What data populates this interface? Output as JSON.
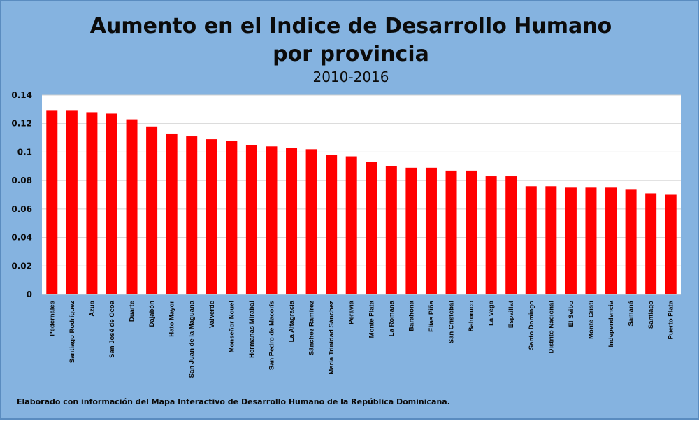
{
  "chart_data": {
    "type": "bar",
    "title": "Aumento en el Indice de Desarrollo Humano",
    "title_line2": "por provincia",
    "subtitle": "2010-2016",
    "xlabel": "",
    "ylabel": "",
    "ylim": [
      0,
      0.14
    ],
    "y_ticks": [
      "0",
      "0.02",
      "0.04",
      "0.06",
      "0.08",
      "0.1",
      "0.12",
      "0.14"
    ],
    "grid": true,
    "legend": "none",
    "bar_color": "#ff0000",
    "categories": [
      "Pedernales",
      "Santiago Rodríguez",
      "Azua",
      "San José de Ocoa",
      "Duarte",
      "Dajabón",
      "Hato Mayor",
      "San Juan de la Maguana",
      "Valverde",
      "Monseñor Nouel",
      "Hermanas Mirabal",
      "San Pedro de Macorís",
      "La Altagracia",
      "Sánchez Ramírez",
      "María Trinidad Sánchez",
      "Peravia",
      "Monte Plata",
      "La Romana",
      "Barahona",
      "Elías Piña",
      "San Cristóbal",
      "Bahoruco",
      "La Vega",
      "Espaillat",
      "Santo Domingo",
      "Distrito Nacional",
      "El Seibo",
      "Monte Cristi",
      "Independencia",
      "Samaná",
      "Santiago",
      "Puerto Plata"
    ],
    "values": [
      0.129,
      0.129,
      0.128,
      0.127,
      0.123,
      0.118,
      0.113,
      0.111,
      0.109,
      0.108,
      0.105,
      0.104,
      0.103,
      0.102,
      0.098,
      0.097,
      0.093,
      0.09,
      0.089,
      0.089,
      0.087,
      0.087,
      0.083,
      0.083,
      0.076,
      0.076,
      0.075,
      0.075,
      0.075,
      0.074,
      0.071,
      0.07
    ]
  },
  "footnote": "Elaborado con información del Mapa Interactivo de Desarrollo Humano de la República Dominicana.",
  "colors": {
    "background": "#85b3e0",
    "plot_area": "#ffffff",
    "bar": "#ff0000",
    "grid": "#d0d0d0"
  }
}
